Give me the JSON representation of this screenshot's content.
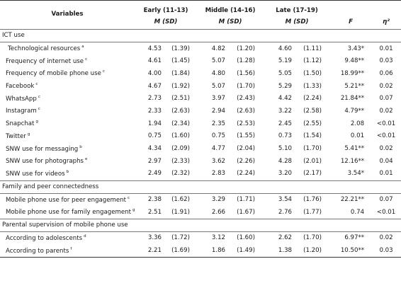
{
  "header": {
    "variables": "Variables",
    "groups": [
      "Early (11-13)",
      "Middle (14-16)",
      "Late (17-19)"
    ],
    "msd": "M (SD)",
    "f": "F",
    "eta": "η²"
  },
  "sections": [
    {
      "title": "ICT use",
      "rows": [
        {
          "label": "Technological resources",
          "sup": "a",
          "early_m": "4.53",
          "early_sd": "(1.39)",
          "middle_m": "4.82",
          "middle_sd": "(1.20)",
          "late_m": "4.60",
          "late_sd": "(1.11)",
          "f": "3.43*",
          "eta": "0.01"
        },
        {
          "label": "Frequency of internet use",
          "sup": "c",
          "early_m": "4.61",
          "early_sd": "(1.45)",
          "middle_m": "5.07",
          "middle_sd": "(1.28)",
          "late_m": "5.19",
          "late_sd": "(1.12)",
          "f": "9.48**",
          "eta": "0.03"
        },
        {
          "label": "Frequency of mobile phone use",
          "sup": "c",
          "early_m": "4.00",
          "early_sd": "(1.84)",
          "middle_m": "4.80",
          "middle_sd": "(1.56)",
          "late_m": "5.05",
          "late_sd": "(1.50)",
          "f": "18.99**",
          "eta": "0.06"
        },
        {
          "label": "Facebook",
          "sup": "c",
          "early_m": "4.67",
          "early_sd": "(1.92)",
          "middle_m": "5.07",
          "middle_sd": "(1.70)",
          "late_m": "5.29",
          "late_sd": "(1.33)",
          "f": "5.21**",
          "eta": "0.02"
        },
        {
          "label": "WhatsApp",
          "sup": "c",
          "early_m": "2.73",
          "early_sd": "(2.51)",
          "middle_m": "3.97",
          "middle_sd": "(2.43)",
          "late_m": "4.42",
          "late_sd": "(2.24)",
          "f": "21.84**",
          "eta": "0.07"
        },
        {
          "label": "Instagram",
          "sup": "c",
          "early_m": "2.33",
          "early_sd": "(2.63)",
          "middle_m": "2.94",
          "middle_sd": "(2.63)",
          "late_m": "3.22",
          "late_sd": "(2.58)",
          "f": "4.79**",
          "eta": "0.02"
        },
        {
          "label": "Snapchat",
          "sup": "g",
          "early_m": "1.94",
          "early_sd": "(2.34)",
          "middle_m": "2.35",
          "middle_sd": "(2.53)",
          "late_m": "2.45",
          "late_sd": "(2.55)",
          "f": "2.08",
          "eta": "<0.01"
        },
        {
          "label": "Twitter",
          "sup": "g",
          "early_m": "0.75",
          "early_sd": "(1.60)",
          "middle_m": "0.75",
          "middle_sd": "(1.55)",
          "late_m": "0.73",
          "late_sd": "(1.54)",
          "f": "0.01",
          "eta": "<0.01"
        },
        {
          "label": "SNW use for messaging",
          "sup": "b",
          "early_m": "4.34",
          "early_sd": "(2.09)",
          "middle_m": "4.77",
          "middle_sd": "(2.04)",
          "late_m": "5.10",
          "late_sd": "(1.70)",
          "f": "5.41**",
          "eta": "0.02"
        },
        {
          "label": "SNW use for photographs",
          "sup": "e",
          "early_m": "2.97",
          "early_sd": "(2.33)",
          "middle_m": "3.62",
          "middle_sd": "(2.26)",
          "late_m": "4.28",
          "late_sd": "(2.01)",
          "f": "12.16**",
          "eta": "0.04"
        },
        {
          "label": "SNW use for videos",
          "sup": "b",
          "early_m": "2.49",
          "early_sd": "(2.32)",
          "middle_m": "2.83",
          "middle_sd": "(2.24)",
          "late_m": "3.20",
          "late_sd": "(2.17)",
          "f": "3.54*",
          "eta": "0.01"
        }
      ]
    },
    {
      "title": "Family and peer connectedness",
      "rows": [
        {
          "label": "Mobile phone use for peer engagement",
          "sup": "c",
          "early_m": "2.38",
          "early_sd": "(1.62)",
          "middle_m": "3.29",
          "middle_sd": "(1.71)",
          "late_m": "3.54",
          "late_sd": "(1.76)",
          "f": "22.21**",
          "eta": "0.07"
        },
        {
          "label": "Mobile phone use for family engagement",
          "sup": "g",
          "early_m": "2.51",
          "early_sd": "(1.91)",
          "middle_m": "2.66",
          "middle_sd": "(1.67)",
          "late_m": "2.76",
          "late_sd": "(1.77)",
          "f": "0.74",
          "eta": "<0.01"
        }
      ]
    },
    {
      "title": "Parental supervision of mobile phone use",
      "rows": [
        {
          "label": "According to adolescents",
          "sup": "d",
          "early_m": "3.36",
          "early_sd": "(1.72)",
          "middle_m": "3.12",
          "middle_sd": "(1.60)",
          "late_m": "2.62",
          "late_sd": "(1.70)",
          "f": "6.97**",
          "eta": "0.02"
        },
        {
          "label": "According to parents",
          "sup": "f",
          "early_m": "2.21",
          "early_sd": "(1.69)",
          "middle_m": "1.86",
          "middle_sd": "(1.49)",
          "late_m": "1.38",
          "late_sd": "(1.20)",
          "f": "10.50**",
          "eta": "0.03"
        }
      ]
    }
  ]
}
